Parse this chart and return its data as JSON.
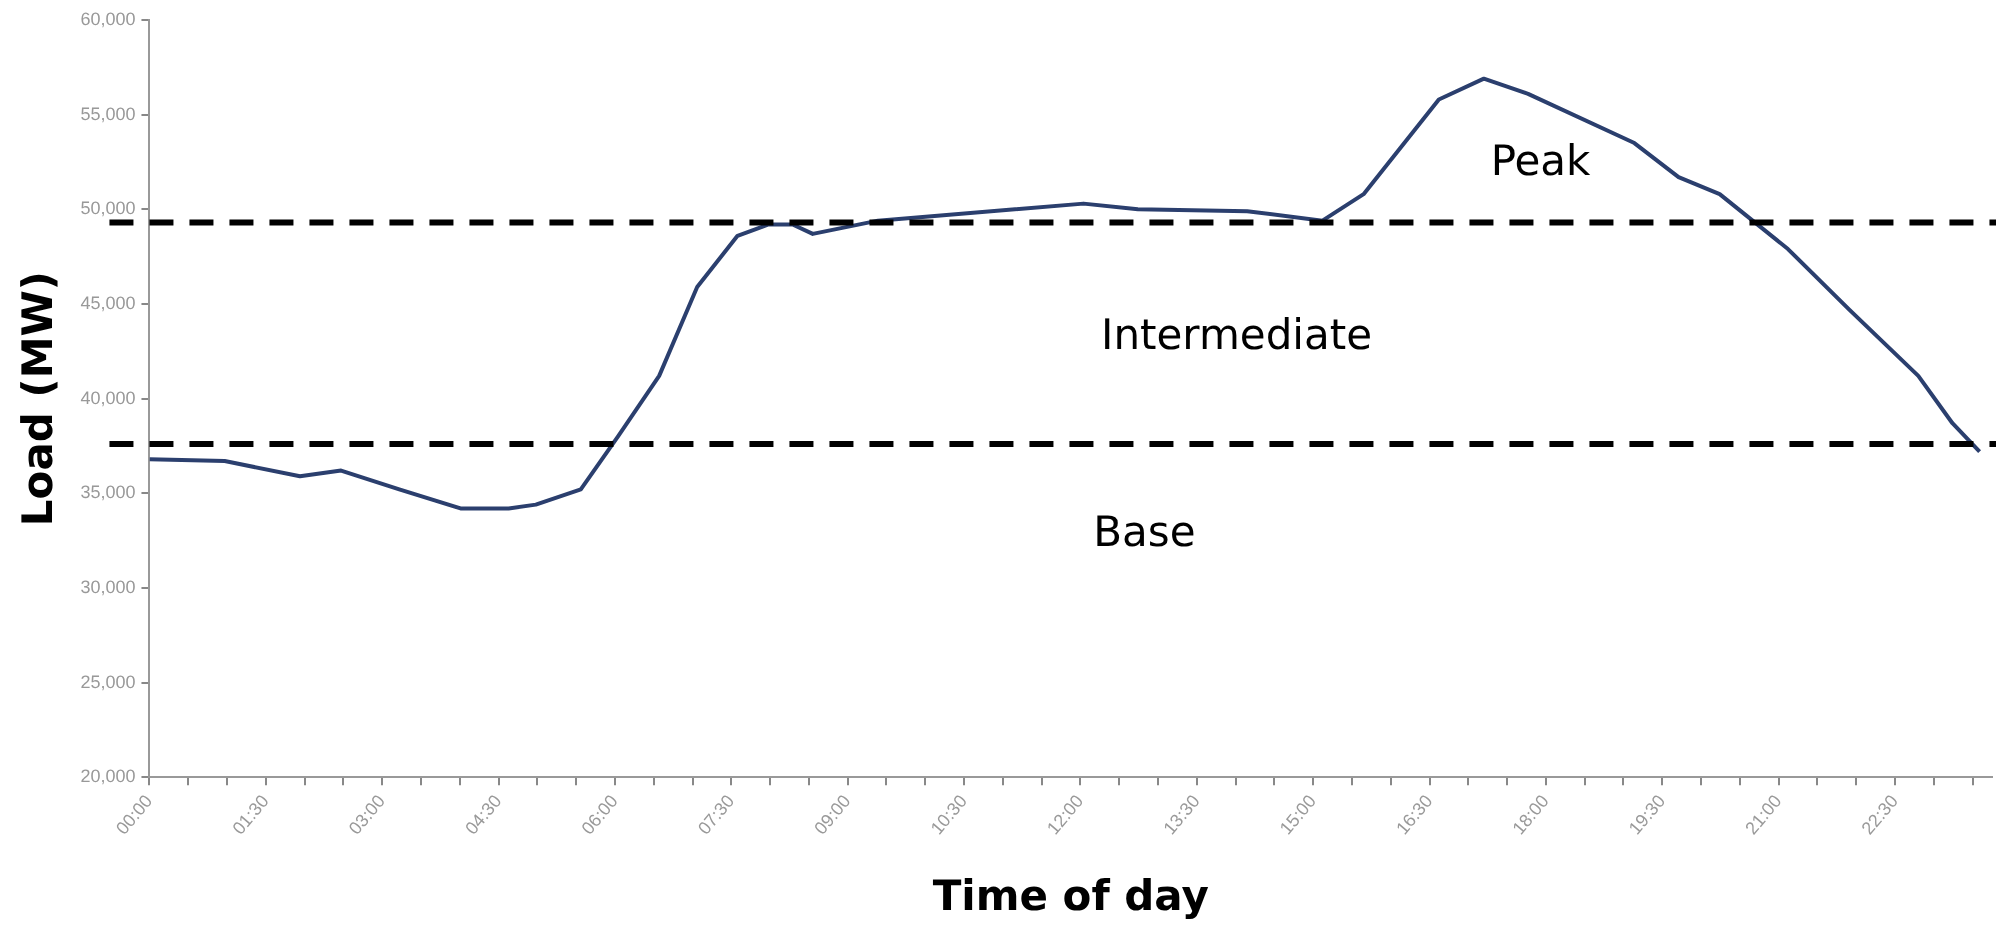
{
  "chart_data": {
    "type": "line",
    "xlabel": "Time of day",
    "ylabel": "Load (MW)",
    "x": [
      0,
      0.97,
      1.94,
      2.47,
      3.22,
      4.01,
      4.63,
      4.98,
      5.56,
      6.04,
      6.57,
      7.06,
      7.58,
      7.98,
      8.29,
      8.55,
      9.39,
      12.04,
      12.74,
      14.15,
      15.12,
      15.65,
      16.62,
      17.2,
      17.77,
      19.14,
      19.71,
      20.24,
      21.12,
      21.91,
      22.8,
      23.24,
      23.59
    ],
    "series": [
      {
        "color": "#2b3f6e",
        "values": [
          36800,
          36700,
          35900,
          36200,
          35200,
          34200,
          34200,
          34400,
          35200,
          38000,
          41200,
          45900,
          48600,
          49200,
          49200,
          48700,
          49400,
          50300,
          50000,
          49900,
          49400,
          50800,
          55800,
          56900,
          56100,
          53500,
          51700,
          50800,
          47900,
          44700,
          41200,
          38700,
          37200
        ]
      }
    ],
    "xlim": [
      0,
      23.75
    ],
    "xticks": [
      {
        "value": 0,
        "label": "00:00"
      },
      {
        "value": 0.5,
        "label": null
      },
      {
        "value": 1,
        "label": null
      },
      {
        "value": 1.5,
        "label": "01:30"
      },
      {
        "value": 2,
        "label": null
      },
      {
        "value": 2.5,
        "label": null
      },
      {
        "value": 3,
        "label": "03:00"
      },
      {
        "value": 3.5,
        "label": null
      },
      {
        "value": 4,
        "label": null
      },
      {
        "value": 4.5,
        "label": "04:30"
      },
      {
        "value": 5,
        "label": null
      },
      {
        "value": 5.5,
        "label": null
      },
      {
        "value": 6,
        "label": "06:00"
      },
      {
        "value": 6.5,
        "label": null
      },
      {
        "value": 7,
        "label": null
      },
      {
        "value": 7.5,
        "label": "07:30"
      },
      {
        "value": 8,
        "label": null
      },
      {
        "value": 8.5,
        "label": null
      },
      {
        "value": 9,
        "label": "09:00"
      },
      {
        "value": 9.5,
        "label": null
      },
      {
        "value": 10,
        "label": null
      },
      {
        "value": 10.5,
        "label": "10:30"
      },
      {
        "value": 11,
        "label": null
      },
      {
        "value": 11.5,
        "label": null
      },
      {
        "value": 12,
        "label": "12:00"
      },
      {
        "value": 12.5,
        "label": null
      },
      {
        "value": 13,
        "label": null
      },
      {
        "value": 13.5,
        "label": "13:30"
      },
      {
        "value": 14,
        "label": null
      },
      {
        "value": 14.5,
        "label": null
      },
      {
        "value": 15,
        "label": "15:00"
      },
      {
        "value": 15.5,
        "label": null
      },
      {
        "value": 16,
        "label": null
      },
      {
        "value": 16.5,
        "label": "16:30"
      },
      {
        "value": 17,
        "label": null
      },
      {
        "value": 17.5,
        "label": null
      },
      {
        "value": 18,
        "label": "18:00"
      },
      {
        "value": 18.5,
        "label": null
      },
      {
        "value": 19,
        "label": null
      },
      {
        "value": 19.5,
        "label": "19:30"
      },
      {
        "value": 20,
        "label": null
      },
      {
        "value": 20.5,
        "label": null
      },
      {
        "value": 21,
        "label": "21:00"
      },
      {
        "value": 21.5,
        "label": null
      },
      {
        "value": 22,
        "label": null
      },
      {
        "value": 22.5,
        "label": "22:30"
      },
      {
        "value": 23,
        "label": null
      },
      {
        "value": 23.5,
        "label": null
      }
    ],
    "ylim": [
      20000,
      60000
    ],
    "yticks": [
      {
        "value": 20000,
        "label": "20,000"
      },
      {
        "value": 25000,
        "label": "25,000"
      },
      {
        "value": 30000,
        "label": "30,000"
      },
      {
        "value": 35000,
        "label": "35,000"
      },
      {
        "value": 40000,
        "label": "40,000"
      },
      {
        "value": 45000,
        "label": "45,000"
      },
      {
        "value": 50000,
        "label": "50,000"
      },
      {
        "value": 55000,
        "label": "55,000"
      },
      {
        "value": 60000,
        "label": "60,000"
      }
    ],
    "ref_lines": [
      {
        "axis": "y",
        "value": 49300,
        "color": "#000000",
        "line_style": "dashed"
      },
      {
        "axis": "y",
        "value": 37600,
        "color": "#000000",
        "line_style": "dashed"
      }
    ],
    "annotations": [
      "Peak",
      "Intermediate",
      "Base"
    ],
    "grid": false,
    "legend": false,
    "marker": "none",
    "line_style": "solid"
  }
}
